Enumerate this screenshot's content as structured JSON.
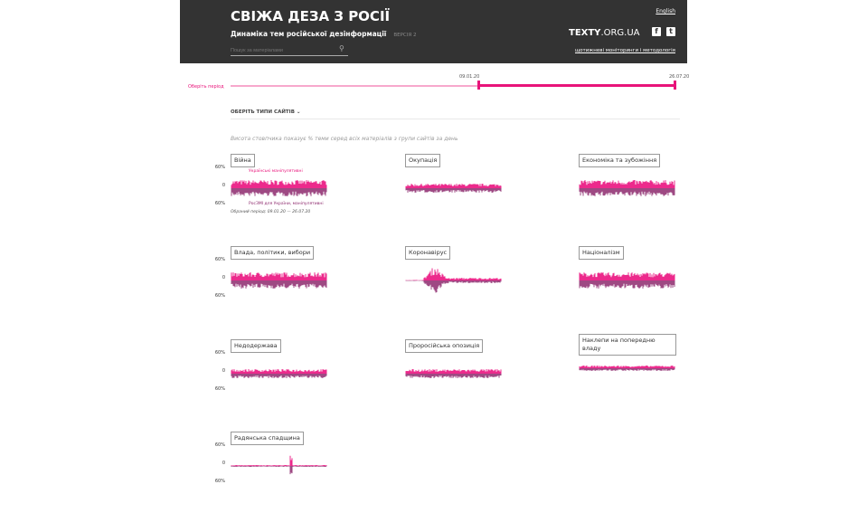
{
  "header": {
    "title": "СВІЖА ДЕЗА З РОСІЇ",
    "subtitle": "Динаміка тем російської дезінформації",
    "version": "ВЕРСІЯ 2",
    "search_placeholder": "Пошук за матеріалами",
    "lang": "English",
    "logo_bold": "TEXTY",
    "logo_rest": ".ORG.UA",
    "links": "щотижневі моніторинги і методологія"
  },
  "period": {
    "label": "Оберіть період",
    "start": "09.01.20",
    "end": "26.07.20",
    "selected_fraction": [
      0.56,
      1.0
    ]
  },
  "filters": {
    "sites_label": "ОБЕРІТЬ ТИПИ САЙТІВ"
  },
  "note": "Висота стовпчика показує % теми серед всіх матеріалів з групи сайтів за день",
  "axis": {
    "top": "60%",
    "mid": "0",
    "bottom": "60%"
  },
  "legend": {
    "top": "Українські маніпулятивні",
    "bottom": "РосЗМІ для України, маніпулятивні",
    "selected": "Обраний період: 09.01.20 — 26.07.20"
  },
  "colors": {
    "top": "#ec2a8c",
    "bottom": "#8e2a6e"
  },
  "topics": [
    {
      "label": "Війна",
      "profile": "high"
    },
    {
      "label": "Окупація",
      "profile": "mid"
    },
    {
      "label": "Економіка та зубожіння",
      "profile": "high"
    },
    {
      "label": "Влада, політики, вибори",
      "profile": "high"
    },
    {
      "label": "Коронавірус",
      "profile": "peak"
    },
    {
      "label": "Націоналізм",
      "profile": "high"
    },
    {
      "label": "Недодержава",
      "profile": "mid"
    },
    {
      "label": "Проросійська опозиція",
      "profile": "mid"
    },
    {
      "label": "Наклепи на попередню владу",
      "profile": "low"
    },
    {
      "label": "Радянська спадщина",
      "profile": "spike"
    }
  ]
}
